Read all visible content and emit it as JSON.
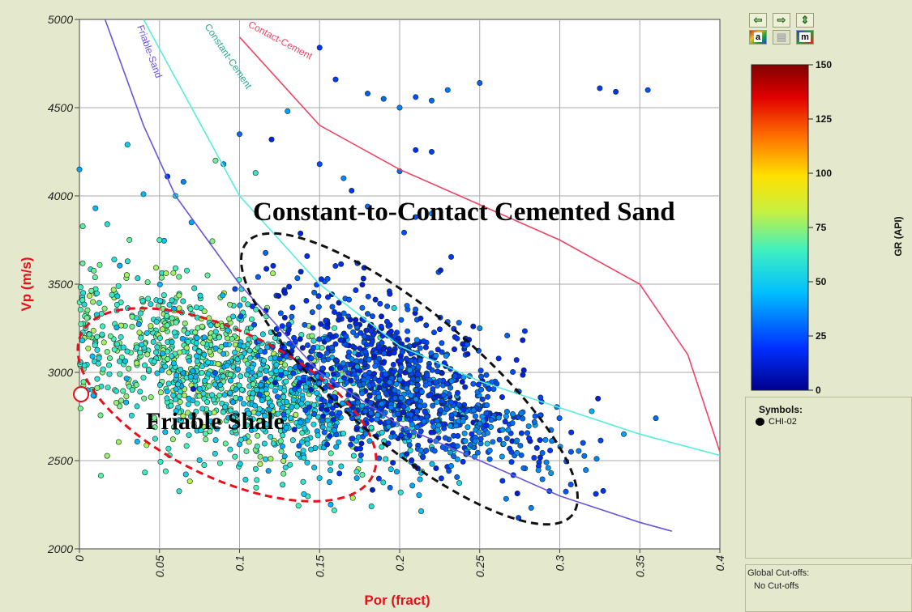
{
  "chart_data": {
    "type": "scatter",
    "xlabel": "Por  (fract)",
    "ylabel": "Vp (m/s)",
    "xlim": [
      0,
      0.4
    ],
    "ylim": [
      2000,
      5000
    ],
    "x_ticks": [
      "0",
      "0.05",
      "0.1",
      "0.15",
      "0.2",
      "0.25",
      "0.3",
      "0.35",
      "0.4"
    ],
    "y_ticks": [
      "2000",
      "2500",
      "3000",
      "3500",
      "4000",
      "4500",
      "5000"
    ],
    "grid": true,
    "color_variable": "GR (API)",
    "colorbar_ticks": [
      "150",
      "125",
      "100",
      "75",
      "50",
      "25",
      "0"
    ],
    "colorbar_range": [
      0,
      150
    ],
    "curves": [
      {
        "name": "Contact-Cement",
        "color": "#ee4466",
        "points": [
          [
            0.1,
            4900
          ],
          [
            0.15,
            4400
          ],
          [
            0.2,
            4150
          ],
          [
            0.25,
            3950
          ],
          [
            0.3,
            3750
          ],
          [
            0.35,
            3500
          ],
          [
            0.38,
            3100
          ],
          [
            0.4,
            2550
          ]
        ]
      },
      {
        "name": "Constant-Cement",
        "color": "#55eedd",
        "points": [
          [
            0.04,
            5000
          ],
          [
            0.07,
            4500
          ],
          [
            0.1,
            4000
          ],
          [
            0.15,
            3500
          ],
          [
            0.2,
            3150
          ],
          [
            0.25,
            2950
          ],
          [
            0.3,
            2800
          ],
          [
            0.35,
            2650
          ],
          [
            0.4,
            2530
          ]
        ]
      },
      {
        "name": "Friable-Sand",
        "color": "#6655dd",
        "points": [
          [
            0.016,
            5000
          ],
          [
            0.04,
            4400
          ],
          [
            0.06,
            4000
          ],
          [
            0.1,
            3500
          ],
          [
            0.15,
            3000
          ],
          [
            0.2,
            2700
          ],
          [
            0.25,
            2500
          ],
          [
            0.3,
            2300
          ],
          [
            0.35,
            2150
          ],
          [
            0.37,
            2100
          ]
        ]
      }
    ],
    "clusters": [
      {
        "cx": 0.07,
        "cy": 3050,
        "sx": 0.05,
        "sy": 230,
        "gr_min": 55,
        "gr_max": 80,
        "n": 700
      },
      {
        "cx": 0.13,
        "cy": 2850,
        "sx": 0.05,
        "sy": 200,
        "gr_min": 40,
        "gr_max": 60,
        "n": 500
      },
      {
        "cx": 0.19,
        "cy": 3000,
        "sx": 0.035,
        "sy": 230,
        "gr_min": 10,
        "gr_max": 30,
        "n": 700
      },
      {
        "cx": 0.23,
        "cy": 2750,
        "sx": 0.04,
        "sy": 150,
        "gr_min": 18,
        "gr_max": 40,
        "n": 350
      }
    ],
    "high_points": [
      [
        0.15,
        4840,
        20
      ],
      [
        0.16,
        4660,
        22
      ],
      [
        0.18,
        4580,
        28
      ],
      [
        0.19,
        4550,
        30
      ],
      [
        0.2,
        4500,
        35
      ],
      [
        0.21,
        4560,
        25
      ],
      [
        0.22,
        4540,
        30
      ],
      [
        0.23,
        4600,
        32
      ],
      [
        0.25,
        4640,
        28
      ],
      [
        0.325,
        4610,
        22
      ],
      [
        0.335,
        4590,
        20
      ],
      [
        0.355,
        4600,
        26
      ],
      [
        0.13,
        4480,
        40
      ],
      [
        0.12,
        4320,
        15
      ],
      [
        0.1,
        4350,
        30
      ],
      [
        0.11,
        4130,
        60
      ],
      [
        0.15,
        4180,
        25
      ],
      [
        0.165,
        4100,
        35
      ],
      [
        0.2,
        4140,
        30
      ],
      [
        0.21,
        4260,
        18
      ],
      [
        0.22,
        4250,
        22
      ],
      [
        0.085,
        4200,
        70
      ],
      [
        0.09,
        4180,
        40
      ],
      [
        0.055,
        4110,
        20
      ],
      [
        0.06,
        4000,
        55
      ],
      [
        0.04,
        4010,
        45
      ],
      [
        0.065,
        4080,
        35
      ],
      [
        0.03,
        4290,
        50
      ],
      [
        0.07,
        3850,
        40
      ],
      [
        0.08,
        3550,
        70
      ],
      [
        0.06,
        3590,
        65
      ],
      [
        0.05,
        3750,
        65
      ],
      [
        0.0,
        4150,
        40
      ],
      [
        0.01,
        3930,
        45
      ],
      [
        0.17,
        4030,
        20
      ],
      [
        0.18,
        3940,
        30
      ],
      [
        0.21,
        3880,
        25
      ],
      [
        0.22,
        3900,
        35
      ],
      [
        0.25,
        3250,
        35
      ],
      [
        0.36,
        2740,
        30
      ],
      [
        0.34,
        2650,
        40
      ],
      [
        0.32,
        2780,
        42
      ]
    ],
    "annotations": [
      "Constant-to-Contact Cemented Sand",
      "Friable Shale"
    ],
    "legend": {
      "title": "Symbols:",
      "items": [
        "CHI-02"
      ]
    },
    "cutoffs": {
      "title": "Global Cut-offs:",
      "value": "No Cut-offs"
    }
  },
  "toolbar": {
    "btn_a": "a",
    "btn_m": "m"
  }
}
